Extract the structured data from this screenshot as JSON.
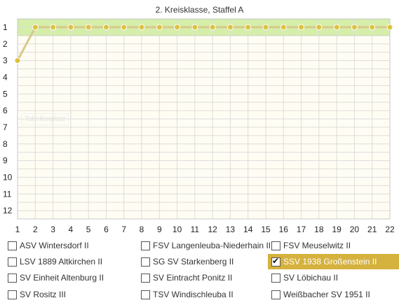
{
  "chart_data": {
    "type": "line",
    "title": "2. Kreisklasse, Staffel A",
    "watermark": "Tabellenplatz",
    "x": [
      1,
      2,
      3,
      4,
      5,
      6,
      7,
      8,
      9,
      10,
      11,
      12,
      13,
      14,
      15,
      16,
      17,
      18,
      19,
      20,
      21,
      22
    ],
    "y_ticks": [
      1,
      2,
      3,
      4,
      5,
      6,
      7,
      8,
      9,
      10,
      11,
      12
    ],
    "y_reversed": true,
    "ylim": [
      0.5,
      12.5
    ],
    "highlight_band": [
      0.5,
      1.5
    ],
    "grid": true,
    "series": [
      {
        "name": "SSV 1938 Großenstein II",
        "values": [
          3,
          1,
          1,
          1,
          1,
          1,
          1,
          1,
          1,
          1,
          1,
          1,
          1,
          1,
          1,
          1,
          1,
          1,
          1,
          1,
          1,
          1
        ]
      }
    ]
  },
  "colors": {
    "series_line": "#d8c88a",
    "series_marker": "#dcc33e",
    "band_fill": "#d5eea9",
    "band_border": "#8fcf3d",
    "grid": "#dcdcdc",
    "plot_bg": "#fffdf3",
    "legend_checked_bg": "#d5b13e"
  },
  "legend": [
    {
      "label": "ASV Wintersdorf II",
      "checked": false
    },
    {
      "label": "FSV Langenleuba-Niederhain II",
      "checked": false
    },
    {
      "label": "FSV Meuselwitz II",
      "checked": false
    },
    {
      "label": "LSV 1889 Altkirchen II",
      "checked": false
    },
    {
      "label": "SG SV Starkenberg II",
      "checked": false
    },
    {
      "label": "SSV 1938 Großenstein II",
      "checked": true
    },
    {
      "label": "SV Einheit Altenburg II",
      "checked": false
    },
    {
      "label": "SV Eintracht Ponitz II",
      "checked": false
    },
    {
      "label": "SV Löbichau II",
      "checked": false
    },
    {
      "label": "SV Rositz III",
      "checked": false
    },
    {
      "label": "TSV Windischleuba II",
      "checked": false
    },
    {
      "label": "Weißbacher SV 1951 II",
      "checked": false
    }
  ]
}
